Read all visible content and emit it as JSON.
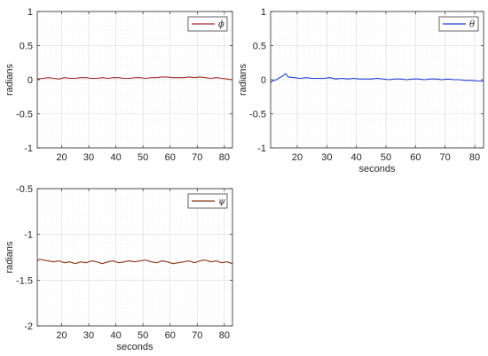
{
  "chart_data": [
    {
      "type": "line",
      "title": "",
      "xlabel": "",
      "ylabel": "radians",
      "xlim": [
        11,
        83
      ],
      "ylim": [
        -1,
        1
      ],
      "xticks": [
        20,
        30,
        40,
        50,
        60,
        70,
        80
      ],
      "yticks": [
        1,
        0.5,
        0,
        -0.5,
        -1
      ],
      "grid": true,
      "legend_position": "top-right",
      "series": [
        {
          "name": "ϕ",
          "color": "#a52a2a",
          "x": [
            11,
            13,
            15,
            17,
            19,
            21,
            23,
            25,
            27,
            29,
            31,
            33,
            35,
            37,
            39,
            41,
            43,
            45,
            47,
            49,
            51,
            53,
            55,
            57,
            59,
            61,
            63,
            65,
            67,
            69,
            71,
            73,
            75,
            77,
            79,
            81,
            83
          ],
          "y": [
            0.01,
            0.02,
            0.03,
            0.02,
            0.01,
            0.03,
            0.02,
            0.02,
            0.03,
            0.03,
            0.02,
            0.02,
            0.03,
            0.02,
            0.03,
            0.03,
            0.02,
            0.02,
            0.03,
            0.03,
            0.02,
            0.03,
            0.03,
            0.04,
            0.04,
            0.03,
            0.03,
            0.03,
            0.04,
            0.03,
            0.04,
            0.03,
            0.02,
            0.03,
            0.02,
            0.01,
            0.0
          ]
        }
      ]
    },
    {
      "type": "line",
      "title": "",
      "xlabel": "seconds",
      "ylabel": "radians",
      "xlim": [
        11,
        83
      ],
      "ylim": [
        -1,
        1
      ],
      "xticks": [
        20,
        30,
        40,
        50,
        60,
        70,
        80
      ],
      "yticks": [
        1,
        0.5,
        0,
        -0.5,
        -1
      ],
      "grid": true,
      "legend_position": "top-right",
      "series": [
        {
          "name": "θ",
          "color": "#1f3fd6",
          "x": [
            11,
            12,
            13,
            14,
            15,
            16,
            17,
            19,
            21,
            23,
            25,
            27,
            29,
            31,
            33,
            35,
            37,
            39,
            41,
            43,
            45,
            47,
            49,
            51,
            53,
            55,
            57,
            59,
            61,
            63,
            65,
            67,
            69,
            71,
            73,
            75,
            77,
            79,
            81,
            83
          ],
          "y": [
            -0.04,
            -0.01,
            0.0,
            0.03,
            0.05,
            0.09,
            0.04,
            0.03,
            0.02,
            0.03,
            0.02,
            0.02,
            0.02,
            0.03,
            0.01,
            0.02,
            0.01,
            0.02,
            0.01,
            0.01,
            0.01,
            0.02,
            0.01,
            0.0,
            0.01,
            0.01,
            0.0,
            0.01,
            0.01,
            0.0,
            0.01,
            0.01,
            0.0,
            0.01,
            0.0,
            0.0,
            -0.01,
            -0.01,
            -0.02,
            -0.02
          ]
        }
      ]
    },
    {
      "type": "line",
      "title": "",
      "xlabel": "seconds",
      "ylabel": "radians",
      "xlim": [
        11,
        83
      ],
      "ylim": [
        -2,
        -0.5
      ],
      "xticks": [
        20,
        30,
        40,
        50,
        60,
        70,
        80
      ],
      "yticks": [
        -0.5,
        -1,
        -1.5,
        -2
      ],
      "grid": true,
      "legend_position": "top-right",
      "series": [
        {
          "name": "ψ",
          "color": "#8b3a1a",
          "x": [
            11,
            12,
            13,
            15,
            17,
            19,
            21,
            23,
            25,
            27,
            29,
            31,
            33,
            35,
            37,
            39,
            41,
            43,
            45,
            47,
            49,
            51,
            53,
            55,
            57,
            59,
            61,
            63,
            65,
            67,
            69,
            71,
            73,
            75,
            77,
            79,
            81,
            83
          ],
          "y": [
            -1.29,
            -1.27,
            -1.28,
            -1.29,
            -1.3,
            -1.29,
            -1.31,
            -1.3,
            -1.32,
            -1.3,
            -1.31,
            -1.29,
            -1.3,
            -1.32,
            -1.3,
            -1.29,
            -1.31,
            -1.3,
            -1.29,
            -1.3,
            -1.29,
            -1.28,
            -1.3,
            -1.31,
            -1.29,
            -1.3,
            -1.32,
            -1.31,
            -1.3,
            -1.29,
            -1.31,
            -1.29,
            -1.28,
            -1.3,
            -1.29,
            -1.31,
            -1.3,
            -1.32
          ]
        }
      ]
    }
  ]
}
